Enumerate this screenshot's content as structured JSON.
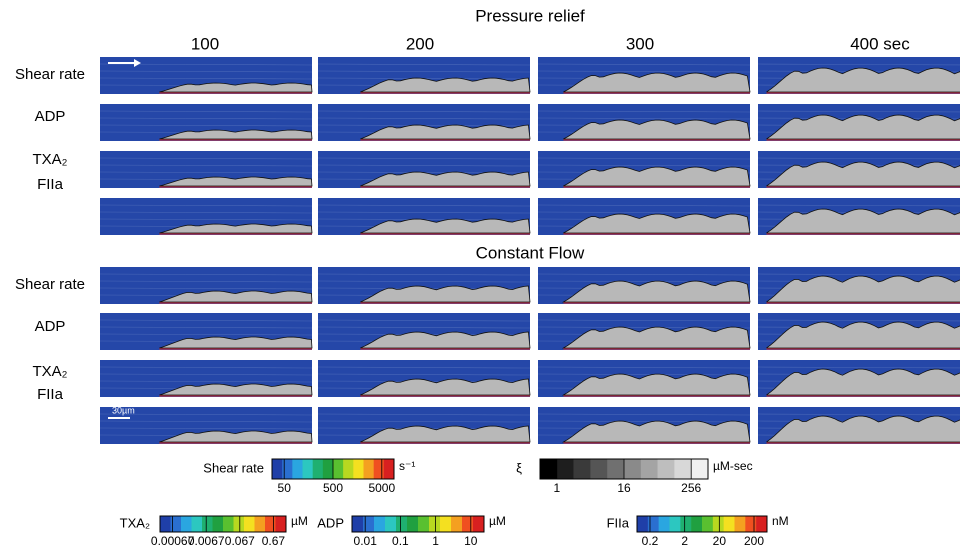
{
  "title_top": "Pressure relief",
  "title_bottom": "Constant Flow",
  "columns": [
    "100",
    "200",
    "300",
    "400 sec"
  ],
  "rows": [
    "Shear rate",
    "ADP",
    "TXA₂",
    "FIIa"
  ],
  "scale_bar": "30µm",
  "colorbars": [
    {
      "label": "Shear rate",
      "ticks": [
        50,
        500,
        5000
      ],
      "unit": "s⁻¹"
    },
    {
      "label": "ξ",
      "ticks": [
        1,
        16,
        256
      ],
      "unit": "µM-sec"
    },
    {
      "label": "TXA₂",
      "ticks": [
        0.00067,
        0.0067,
        0.067,
        0.67
      ],
      "unit": "µM"
    },
    {
      "label": "ADP",
      "ticks": [
        0.01,
        0.1,
        1,
        10
      ],
      "unit": "µM"
    },
    {
      "label": "FIIa",
      "ticks": [
        0.2,
        2,
        20,
        200
      ],
      "unit": "nM"
    }
  ]
}
